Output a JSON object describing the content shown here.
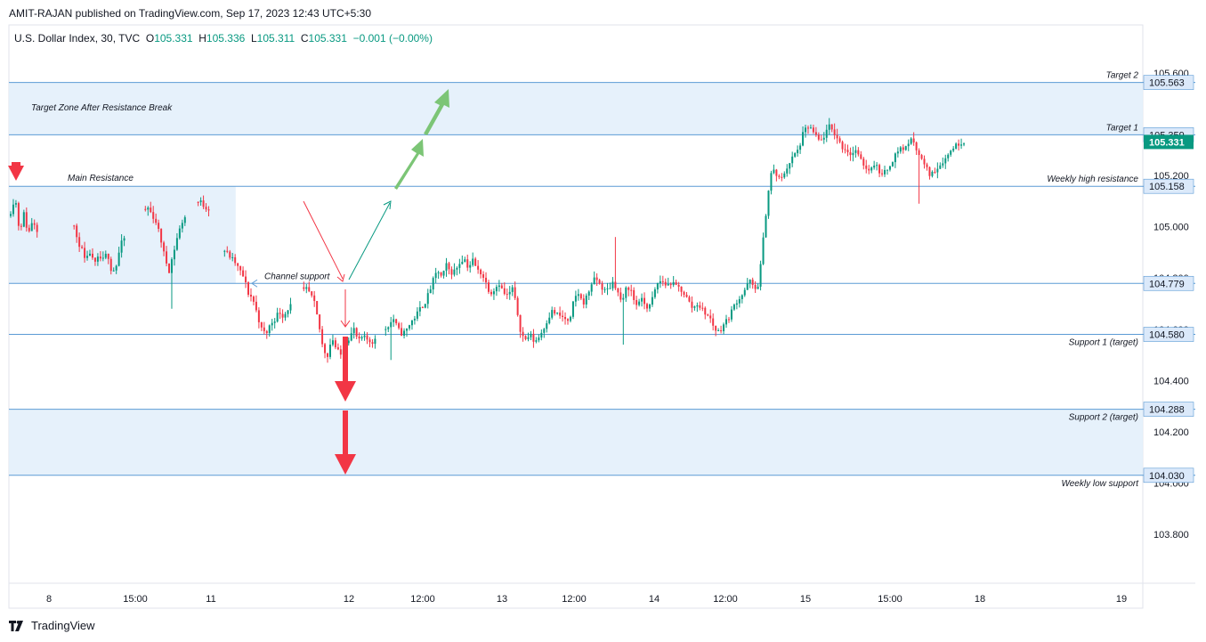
{
  "header": {
    "published": "AMIT-RAJAN published on TradingView.com, Sep 17, 2023 12:43 UTC+5:30"
  },
  "legend": {
    "symbol": "U.S. Dollar Index, 30, TVC",
    "o_label": "O",
    "o_value": "105.331",
    "h_label": "H",
    "h_value": "105.336",
    "l_label": "L",
    "l_value": "105.311",
    "c_label": "C",
    "c_value": "105.331",
    "change": "−0.001 (−0.00%)"
  },
  "footer": {
    "brand": "TradingView"
  },
  "colors": {
    "up": "#089981",
    "down": "#f23645",
    "level_line": "#5b9bd5",
    "zone_fill": "#e3effb",
    "price_tag": "#dbe9fa",
    "current_tag": "#089981",
    "arrow_green": "#7cc576",
    "arrow_red": "#f23645"
  },
  "chart_data": {
    "type": "candlestick",
    "symbol": "U.S. Dollar Index",
    "interval": "30",
    "ylim": [
      103.7,
      105.62
    ],
    "y_ticks": [
      "105.600",
      "105.200",
      "105.000",
      "104.800",
      "104.600",
      "104.400",
      "104.200",
      "104.000",
      "103.800"
    ],
    "x_ticks": [
      "8",
      "15:00",
      "11",
      "12",
      "12:00",
      "13",
      "12:00",
      "14",
      "12:00",
      "15",
      "15:00",
      "18",
      "19"
    ],
    "levels": [
      {
        "label": "Target 2",
        "price": 105.563,
        "tag": "105.563"
      },
      {
        "label": "Target 1",
        "price": 105.359,
        "tag": "105.359"
      },
      {
        "label": "Weekly high resistance",
        "price": 105.158,
        "tag": "105.158"
      },
      {
        "label": "",
        "price": 104.779,
        "tag": "104.779"
      },
      {
        "label": "Support 1 (target)",
        "price": 104.58,
        "tag": "104.580"
      },
      {
        "label": "Support 2 (target)",
        "price": 104.288,
        "tag": "104.288"
      },
      {
        "label": "Weekly low support",
        "price": 104.03,
        "tag": "104.030"
      }
    ],
    "current_price": "105.331",
    "zones": [
      {
        "label": "Target Zone After Resistance Break",
        "top": 105.563,
        "bottom": 105.359
      },
      {
        "label": "Main Resistance",
        "top": 105.158,
        "bottom": 104.779
      },
      {
        "label": "",
        "top": 104.288,
        "bottom": 104.03
      }
    ],
    "annotations": [
      "Channel support"
    ],
    "close_path": [
      [
        0,
        105.06
      ],
      [
        5,
        105.12
      ],
      [
        10,
        104.98
      ],
      [
        15,
        105.05
      ],
      [
        20,
        104.97
      ],
      [
        25,
        105.03
      ],
      [
        30,
        104.99
      ],
      [
        40,
        105.05
      ],
      [
        50,
        105.07
      ],
      [
        60,
        105.08
      ],
      [
        70,
        105.04
      ],
      [
        75,
        104.95
      ],
      [
        80,
        104.92
      ],
      [
        85,
        104.86
      ],
      [
        90,
        104.9
      ],
      [
        95,
        104.85
      ],
      [
        100,
        104.88
      ],
      [
        105,
        104.87
      ],
      [
        110,
        104.9
      ],
      [
        115,
        104.82
      ],
      [
        120,
        104.85
      ],
      [
        125,
        104.93
      ],
      [
        130,
        104.96
      ],
      [
        140,
        105.0
      ],
      [
        150,
        105.04
      ],
      [
        155,
        105.08
      ],
      [
        160,
        105.05
      ],
      [
        165,
        105.02
      ],
      [
        170,
        104.96
      ],
      [
        175,
        104.88
      ],
      [
        180,
        104.83
      ],
      [
        185,
        104.9
      ],
      [
        190,
        104.97
      ],
      [
        195,
        105.02
      ],
      [
        200,
        105.05
      ],
      [
        210,
        105.09
      ],
      [
        215,
        105.1
      ],
      [
        220,
        105.08
      ],
      [
        225,
        105.07
      ],
      [
        240,
        104.92
      ],
      [
        245,
        104.9
      ],
      [
        250,
        104.88
      ],
      [
        255,
        104.86
      ],
      [
        260,
        104.83
      ],
      [
        265,
        104.8
      ],
      [
        270,
        104.74
      ],
      [
        275,
        104.72
      ],
      [
        280,
        104.66
      ],
      [
        285,
        104.6
      ],
      [
        290,
        104.58
      ],
      [
        295,
        104.62
      ],
      [
        300,
        104.64
      ],
      [
        305,
        104.67
      ],
      [
        310,
        104.65
      ],
      [
        315,
        104.68
      ],
      [
        320,
        104.7
      ],
      [
        330,
        104.73
      ],
      [
        335,
        104.76
      ],
      [
        340,
        104.74
      ],
      [
        345,
        104.7
      ],
      [
        350,
        104.62
      ],
      [
        355,
        104.52
      ],
      [
        360,
        104.5
      ],
      [
        365,
        104.57
      ],
      [
        370,
        104.52
      ],
      [
        375,
        104.5
      ],
      [
        380,
        104.55
      ],
      [
        385,
        104.57
      ],
      [
        390,
        104.6
      ],
      [
        395,
        104.55
      ],
      [
        400,
        104.57
      ],
      [
        405,
        104.56
      ],
      [
        410,
        104.55
      ],
      [
        415,
        104.56
      ],
      [
        425,
        104.6
      ],
      [
        430,
        104.62
      ],
      [
        435,
        104.64
      ],
      [
        440,
        104.6
      ],
      [
        445,
        104.58
      ],
      [
        450,
        104.6
      ],
      [
        455,
        104.63
      ],
      [
        460,
        104.65
      ],
      [
        465,
        104.68
      ],
      [
        470,
        104.7
      ],
      [
        475,
        104.74
      ],
      [
        480,
        104.79
      ],
      [
        485,
        104.83
      ],
      [
        490,
        104.8
      ],
      [
        495,
        104.85
      ],
      [
        500,
        104.82
      ],
      [
        505,
        104.83
      ],
      [
        510,
        104.86
      ],
      [
        515,
        104.88
      ],
      [
        520,
        104.84
      ],
      [
        525,
        104.87
      ],
      [
        530,
        104.83
      ],
      [
        535,
        104.82
      ],
      [
        540,
        104.78
      ],
      [
        545,
        104.74
      ],
      [
        550,
        104.76
      ],
      [
        555,
        104.78
      ],
      [
        560,
        104.74
      ],
      [
        565,
        104.73
      ],
      [
        570,
        104.76
      ],
      [
        575,
        104.68
      ],
      [
        580,
        104.58
      ],
      [
        585,
        104.56
      ],
      [
        590,
        104.58
      ],
      [
        595,
        104.55
      ],
      [
        600,
        104.57
      ],
      [
        605,
        104.6
      ],
      [
        610,
        104.64
      ],
      [
        615,
        104.67
      ],
      [
        620,
        104.66
      ],
      [
        625,
        104.65
      ],
      [
        630,
        104.64
      ],
      [
        635,
        104.62
      ],
      [
        640,
        104.72
      ],
      [
        645,
        104.74
      ],
      [
        650,
        104.7
      ],
      [
        655,
        104.73
      ],
      [
        660,
        104.78
      ],
      [
        665,
        104.8
      ],
      [
        670,
        104.77
      ],
      [
        675,
        104.75
      ],
      [
        680,
        104.76
      ],
      [
        685,
        104.79
      ],
      [
        690,
        104.74
      ],
      [
        695,
        104.7
      ],
      [
        700,
        104.77
      ],
      [
        705,
        104.75
      ],
      [
        710,
        104.69
      ],
      [
        715,
        104.72
      ],
      [
        720,
        104.7
      ],
      [
        725,
        104.68
      ],
      [
        730,
        104.73
      ],
      [
        735,
        104.78
      ],
      [
        740,
        104.79
      ],
      [
        745,
        104.77
      ],
      [
        750,
        104.78
      ],
      [
        755,
        104.77
      ],
      [
        760,
        104.76
      ],
      [
        765,
        104.74
      ],
      [
        770,
        104.71
      ],
      [
        775,
        104.68
      ],
      [
        780,
        104.7
      ],
      [
        785,
        104.68
      ],
      [
        790,
        104.66
      ],
      [
        795,
        104.64
      ],
      [
        800,
        104.6
      ],
      [
        805,
        104.59
      ],
      [
        810,
        104.62
      ],
      [
        815,
        104.64
      ],
      [
        820,
        104.68
      ],
      [
        825,
        104.71
      ],
      [
        830,
        104.73
      ],
      [
        835,
        104.76
      ],
      [
        840,
        104.79
      ],
      [
        845,
        104.75
      ],
      [
        850,
        104.78
      ],
      [
        855,
        104.95
      ],
      [
        860,
        105.12
      ],
      [
        865,
        105.23
      ],
      [
        870,
        105.2
      ],
      [
        875,
        105.18
      ],
      [
        880,
        105.22
      ],
      [
        885,
        105.25
      ],
      [
        890,
        105.28
      ],
      [
        895,
        105.3
      ],
      [
        900,
        105.36
      ],
      [
        905,
        105.39
      ],
      [
        910,
        105.38
      ],
      [
        915,
        105.35
      ],
      [
        920,
        105.33
      ],
      [
        925,
        105.36
      ],
      [
        930,
        105.39
      ],
      [
        935,
        105.37
      ],
      [
        940,
        105.34
      ],
      [
        945,
        105.31
      ],
      [
        950,
        105.3
      ],
      [
        955,
        105.28
      ],
      [
        960,
        105.3
      ],
      [
        965,
        105.26
      ],
      [
        970,
        105.24
      ],
      [
        975,
        105.22
      ],
      [
        980,
        105.25
      ],
      [
        985,
        105.23
      ],
      [
        990,
        105.2
      ],
      [
        995,
        105.22
      ],
      [
        1000,
        105.25
      ],
      [
        1005,
        105.28
      ],
      [
        1010,
        105.31
      ],
      [
        1015,
        105.3
      ],
      [
        1020,
        105.33
      ],
      [
        1025,
        105.34
      ],
      [
        1030,
        105.3
      ],
      [
        1035,
        105.26
      ],
      [
        1040,
        105.23
      ],
      [
        1045,
        105.2
      ],
      [
        1050,
        105.22
      ],
      [
        1055,
        105.24
      ],
      [
        1060,
        105.26
      ],
      [
        1065,
        105.28
      ],
      [
        1070,
        105.31
      ],
      [
        1075,
        105.32
      ],
      [
        1080,
        105.33
      ],
      [
        1085,
        105.331
      ]
    ],
    "wick_spikes": [
      {
        "x": 185,
        "low": 104.68
      },
      {
        "x": 433,
        "low": 104.48
      },
      {
        "x": 689,
        "high": 104.96
      },
      {
        "x": 697,
        "low": 104.54
      },
      {
        "x": 1034,
        "low": 105.09
      }
    ]
  }
}
